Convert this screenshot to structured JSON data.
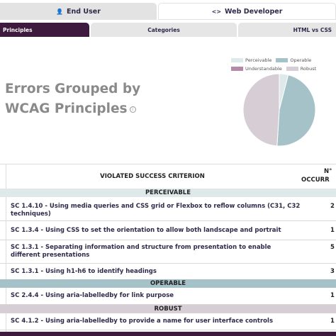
{
  "top_tabs": [
    {
      "icon": "user-icon",
      "glyph": "👤",
      "label": "End User"
    },
    {
      "icon": "code-icon",
      "glyph": "<>",
      "label": "Web Developer"
    }
  ],
  "sub_tabs": [
    "Principles",
    "Categories",
    "HTML vs CSS"
  ],
  "heading": {
    "line1": "Errors Grouped by",
    "line2": "WCAG Principles",
    "info_glyph": "i"
  },
  "legend": [
    {
      "label": "Perceivable",
      "color": "#dfe9e9"
    },
    {
      "label": "Operable",
      "color": "#a4c2c8"
    },
    {
      "label": "Understandable",
      "color": "#b48aa8"
    },
    {
      "label": "Robust",
      "color": "#d7cdd4"
    }
  ],
  "chart_data": {
    "type": "pie",
    "slices": [
      {
        "label": "Perceivable",
        "value": 4,
        "color": "#dfe9e9"
      },
      {
        "label": "Operable",
        "value": 47,
        "color": "#a4c2c8"
      },
      {
        "label": "Understandable",
        "value": 0,
        "color": "#b48aa8"
      },
      {
        "label": "Robust",
        "value": 49,
        "color": "#d7cdd4"
      }
    ],
    "legend_position": "top"
  },
  "table": {
    "col_criterion": "VIOLATED SUCCESS CRITERION",
    "col_count_line1": "N°",
    "col_count_line2": "OCCURR",
    "groups": [
      {
        "name": "PERCEIVABLE",
        "rows": [
          {
            "text": "SC 1.4.10 - Using media queries and CSS grid or Flexbox to reflow columns (C31, C32 techniques)",
            "count": "2"
          },
          {
            "text": "SC 1.3.4 - Using CSS to set the orientation to allow both landscape and portrait",
            "count": "1"
          },
          {
            "text": "SC 1.3.1 - Separating information and structure from presentation to enable different presentations",
            "count": "5"
          },
          {
            "text": "SC 1.3.1 - Using h1-h6 to identify headings",
            "count": "3"
          }
        ]
      },
      {
        "name": "OPERABLE",
        "rows": [
          {
            "text": "SC 2.4.4 - Using aria-labelledby for link purpose",
            "count": "1"
          }
        ]
      },
      {
        "name": "ROBUST",
        "rows": [
          {
            "text": "SC 4.1.2 - Using aria-labelledby to provide a name for user interface controls",
            "count": "1"
          }
        ]
      }
    ]
  }
}
